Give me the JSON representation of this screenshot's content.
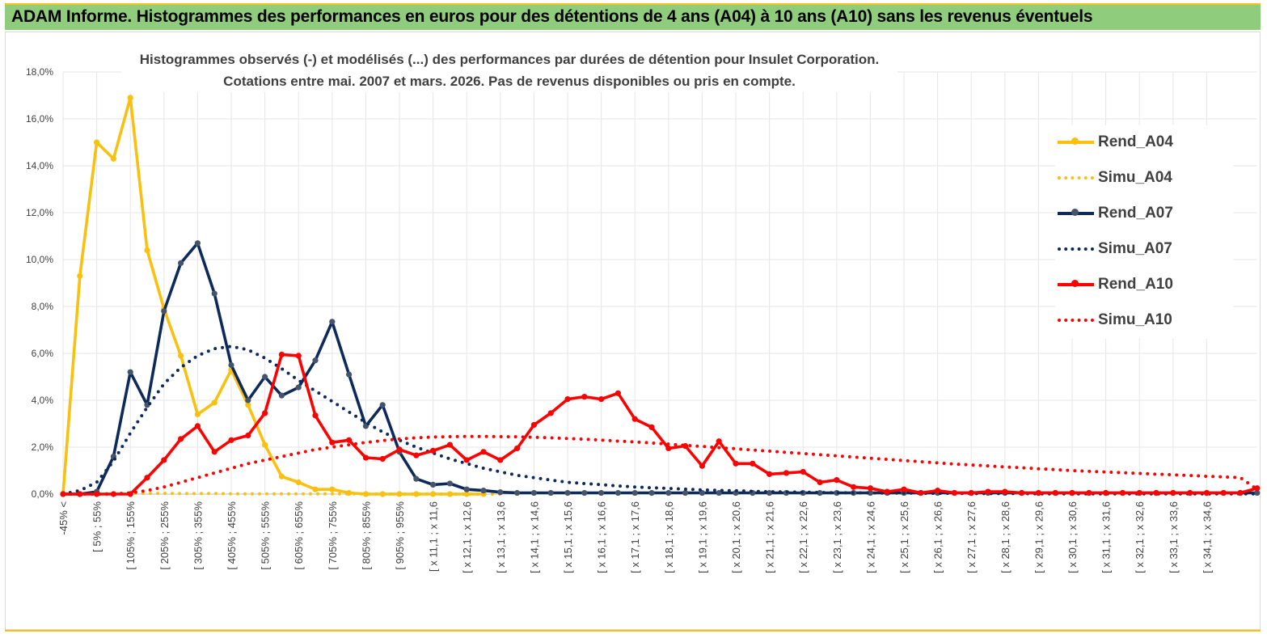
{
  "header": {
    "title": "ADAM Informe. Histogrammes des performances en euros pour des détentions de 4 ans (A04) à 10 ans (A10) sans les revenus éventuels"
  },
  "colors": {
    "header_bg": "#8fcd7c",
    "accent": "#f4c31a",
    "a04": "#f9c00f",
    "a07": "#0e2a5b",
    "a10": "#ff0000"
  },
  "chart_data": {
    "type": "line",
    "title_lines": [
      "Histogrammes observés (-)  et modélisés (...) des performances  par durées de détention pour Insulet Corporation.",
      "Cotations entre mai. 2007 et mars. 2026. Pas de revenus disponibles ou pris en compte."
    ],
    "ylim": [
      0,
      18
    ],
    "y_ticks": [
      "0,0%",
      "2,0%",
      "4,0%",
      "6,0%",
      "8,0%",
      "10,0%",
      "12,0%",
      "14,0%",
      "16,0%",
      "18,0%"
    ],
    "tick_labels": [
      "-45% <",
      "[ 5% ; 55%",
      "[ 105% ; 155%",
      "[ 205% ; 255%",
      "[ 305% ; 355%",
      "[ 405% ; 455%",
      "[ 505% ; 555%",
      "[ 605% ; 655%",
      "[ 705% ; 755%",
      "[ 805% ; 855%",
      "[ 905% ; 955%",
      "[ x 11,1 ; x 11,6",
      "[ x 12,1 ; x 12,6",
      "[ x 13,1 ; x 13,6",
      "[ x 14,1 ; x 14,6",
      "[ x 15,1 ; x 15,6",
      "[ x 16,1 ; x 16,6",
      "[ x 17,1 ; x 17,6",
      "[ x 18,1 ; x 18,6",
      "[ x 19,1 ; x 19,6",
      "[ x 20,1 ; x 20,6",
      "[ x 21,1 ; x 21,6",
      "[ x 22,1 ; x 22,6",
      "[ x 23,1 ; x 23,6",
      "[ x 24,1 ; x 24,6",
      "[ x 25,1 ; x 25,6",
      "[ x 26,1 ; x 26,6",
      "[ x 27,1 ; x 27,6",
      "[ x 28,1 ; x 28,6",
      "[ x 29,1 ; x 29,6",
      "[ x 30,1 ; x 30,6",
      "[ x 31,1 ; x 31,6",
      "[ x 32,1 ; x 32,6",
      "[ x 33,1 ; x 33,6",
      "[ x 34,1 ; x 34,6"
    ],
    "categories_count": 72,
    "series": [
      {
        "name": "Rend_A04",
        "style": "solid",
        "color": "#f9c00f",
        "markers": true,
        "values": [
          0,
          9.3,
          15.0,
          14.3,
          16.9,
          10.4,
          7.9,
          5.9,
          3.4,
          3.9,
          5.3,
          3.8,
          2.1,
          0.75,
          0.5,
          0.2,
          0.2,
          0.05,
          0,
          0,
          0,
          0,
          0,
          0,
          0,
          0
        ]
      },
      {
        "name": "Simu_A04",
        "style": "dotted",
        "color": "#f9c00f",
        "markers": false,
        "values": [
          0,
          0,
          0.01,
          0.02,
          0.03,
          0.03,
          0.03,
          0.02,
          0.02,
          0.02,
          0.01,
          0.01,
          0.01,
          0.01,
          0.01,
          0.01,
          0.01,
          0.01,
          0,
          0,
          0,
          0,
          0,
          0,
          0,
          0,
          0
        ]
      },
      {
        "name": "Rend_A07",
        "style": "solid",
        "color": "#0e2a5b",
        "markers": true,
        "values": [
          0,
          0,
          0.1,
          1.6,
          5.2,
          3.8,
          7.8,
          9.85,
          10.7,
          8.55,
          5.5,
          4.0,
          5.0,
          4.2,
          4.55,
          5.7,
          7.35,
          5.1,
          2.9,
          3.8,
          1.8,
          0.65,
          0.4,
          0.45,
          0.2,
          0.15,
          0.08,
          0.05,
          0.05,
          0.05,
          0.05,
          0.05,
          0.05,
          0.05,
          0.05,
          0.05,
          0.05,
          0.05,
          0.05,
          0.05,
          0.05,
          0.05,
          0.05,
          0.05,
          0.05,
          0.05,
          0.05,
          0.05,
          0.05,
          0.05,
          0.05,
          0.05,
          0.05,
          0.05,
          0.05,
          0.05,
          0.05,
          0.05,
          0.05,
          0.05,
          0.05,
          0.05,
          0.05,
          0.05,
          0.05,
          0.05,
          0.05,
          0.05,
          0.05,
          0.05,
          0.05,
          0.05
        ]
      },
      {
        "name": "Simu_A07",
        "style": "dotted",
        "color": "#0e2a5b",
        "markers": false,
        "values": [
          0,
          0.15,
          0.5,
          1.4,
          2.6,
          3.7,
          4.7,
          5.4,
          5.9,
          6.2,
          6.3,
          6.15,
          5.8,
          5.35,
          4.85,
          4.4,
          3.95,
          3.5,
          3.05,
          2.65,
          2.3,
          2.0,
          1.75,
          1.5,
          1.3,
          1.1,
          0.95,
          0.8,
          0.7,
          0.6,
          0.5,
          0.45,
          0.4,
          0.35,
          0.3,
          0.27,
          0.24,
          0.21,
          0.18,
          0.16,
          0.14,
          0.12,
          0.1,
          0.09,
          0.08,
          0.07,
          0.06,
          0.05,
          0.05,
          0.04,
          0.04,
          0.03,
          0.03,
          0.03,
          0.02,
          0.02,
          0.02,
          0.02,
          0.01,
          0.01,
          0.01,
          0.01,
          0.01,
          0.01,
          0.01,
          0.01,
          0.01,
          0.01,
          0.01,
          0.01,
          0.01,
          0.01
        ]
      },
      {
        "name": "Rend_A10",
        "style": "solid",
        "color": "#ff0000",
        "markers": true,
        "values": [
          0,
          0,
          0,
          0,
          0,
          0.7,
          1.45,
          2.35,
          2.9,
          1.8,
          2.3,
          2.5,
          3.45,
          5.95,
          5.9,
          3.35,
          2.2,
          2.3,
          1.55,
          1.5,
          1.9,
          1.65,
          1.85,
          2.1,
          1.45,
          1.8,
          1.45,
          1.95,
          2.95,
          3.45,
          4.05,
          4.15,
          4.05,
          4.3,
          3.2,
          2.85,
          1.95,
          2.05,
          1.2,
          2.25,
          1.3,
          1.3,
          0.85,
          0.9,
          0.95,
          0.5,
          0.6,
          0.3,
          0.25,
          0.1,
          0.2,
          0.05,
          0.15,
          0.05,
          0.05,
          0.1,
          0.1,
          0.05,
          0.05,
          0.05,
          0.05,
          0.05,
          0.05,
          0.05,
          0.05,
          0.05,
          0.05,
          0.05,
          0.05,
          0.05,
          0.05,
          0.25
        ]
      },
      {
        "name": "Simu_A10",
        "style": "dotted",
        "color": "#ff0000",
        "markers": false,
        "values": [
          0,
          0,
          0,
          0,
          0.05,
          0.15,
          0.3,
          0.5,
          0.7,
          0.9,
          1.1,
          1.3,
          1.45,
          1.6,
          1.75,
          1.9,
          2.0,
          2.1,
          2.2,
          2.28,
          2.35,
          2.4,
          2.43,
          2.45,
          2.46,
          2.46,
          2.45,
          2.44,
          2.42,
          2.4,
          2.37,
          2.34,
          2.3,
          2.26,
          2.22,
          2.18,
          2.13,
          2.08,
          2.03,
          1.98,
          1.93,
          1.88,
          1.83,
          1.78,
          1.73,
          1.68,
          1.63,
          1.58,
          1.53,
          1.48,
          1.43,
          1.38,
          1.33,
          1.28,
          1.24,
          1.2,
          1.16,
          1.12,
          1.08,
          1.04,
          1.0,
          0.97,
          0.94,
          0.91,
          0.88,
          0.85,
          0.82,
          0.79,
          0.76,
          0.73,
          0.7,
          0.2
        ]
      }
    ],
    "legend_placement": "right"
  }
}
